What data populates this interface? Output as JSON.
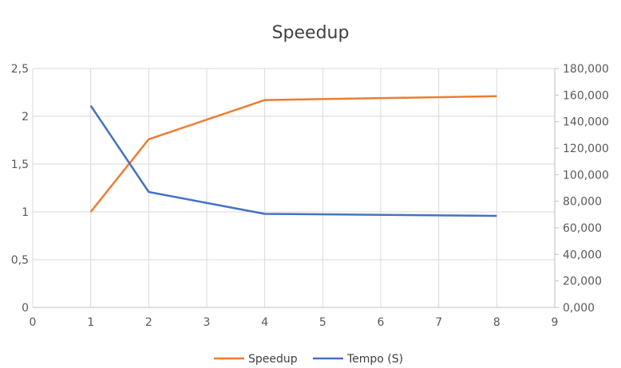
{
  "chart_data": {
    "type": "line",
    "title": "Speedup",
    "x_axis": {
      "range": [
        0,
        9
      ],
      "tick_labels": [
        "0",
        "1",
        "2",
        "3",
        "4",
        "5",
        "6",
        "7",
        "8",
        "9"
      ],
      "tick_values": [
        0,
        1,
        2,
        3,
        4,
        5,
        6,
        7,
        8,
        9
      ],
      "grid": true
    },
    "y_left": {
      "range": [
        0,
        2.5
      ],
      "tick_values": [
        0,
        0.5,
        1,
        1.5,
        2,
        2.5
      ],
      "tick_labels": [
        "0",
        "0,5",
        "1",
        "1,5",
        "2",
        "2,5"
      ]
    },
    "y_right": {
      "range": [
        0,
        180
      ],
      "tick_values": [
        0,
        20,
        40,
        60,
        80,
        100,
        120,
        140,
        160,
        180
      ],
      "tick_labels": [
        "0,000",
        "20,000",
        "40,000",
        "60,000",
        "80,000",
        "100,000",
        "120,000",
        "140,000",
        "160,000",
        "180,000"
      ]
    },
    "series": [
      {
        "name": "Speedup",
        "axis": "left",
        "color": "#ed7d31",
        "x": [
          1,
          2,
          4,
          8
        ],
        "y": [
          1.0,
          1.76,
          2.17,
          2.21
        ]
      },
      {
        "name": "Tempo (S)",
        "axis": "right",
        "color": "#4472c4",
        "x": [
          1,
          2,
          4,
          8
        ],
        "y": [
          152,
          87,
          70.5,
          69
        ]
      }
    ],
    "legend_position": "bottom"
  }
}
